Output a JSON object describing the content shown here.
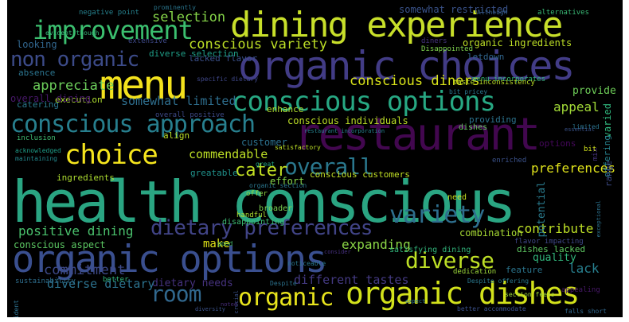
{
  "words": [
    {
      "text": "health conscious",
      "color": "#2aa582"
    },
    {
      "text": "organic options",
      "color": "#3a4f8f"
    },
    {
      "text": "dining experience",
      "color": "#c8df2a"
    },
    {
      "text": "organic choices",
      "color": "#423c86"
    },
    {
      "text": "menu",
      "color": "#f3e21d"
    },
    {
      "text": "restaurant",
      "color": "#42074f"
    },
    {
      "text": "organic dishes",
      "color": "#d2e11b"
    },
    {
      "text": "conscious options",
      "color": "#27a883"
    },
    {
      "text": "conscious approach",
      "color": "#277f8e"
    },
    {
      "text": "improvement",
      "color": "#3bbf6f"
    },
    {
      "text": "choice",
      "color": "#f5e51d"
    },
    {
      "text": "non organic",
      "color": "#3c4b89"
    },
    {
      "text": "dietary preferences",
      "color": "#414487"
    },
    {
      "text": "variety",
      "color": "#2e6f8e"
    },
    {
      "text": "organic",
      "color": "#e8e41d"
    },
    {
      "text": "diverse",
      "color": "#bddf26"
    },
    {
      "text": "overall",
      "color": "#2a788e"
    },
    {
      "text": "cater",
      "color": "#c2df23"
    },
    {
      "text": "room",
      "color": "#31688e"
    },
    {
      "text": "conscious variety",
      "color": "#bddf26"
    },
    {
      "text": "conscious diners",
      "color": "#d8e219"
    },
    {
      "text": "selection",
      "color": "#86d549"
    },
    {
      "text": "appreciate",
      "color": "#6ccd5a"
    },
    {
      "text": "commitment",
      "color": "#3e4a89"
    },
    {
      "text": "somewhat limited",
      "color": "#2e6e8e"
    },
    {
      "text": "preferences",
      "color": "#e0e31b"
    },
    {
      "text": "commendable",
      "color": "#bddf26"
    },
    {
      "text": "contribute",
      "color": "#bddf26"
    },
    {
      "text": "expanding",
      "color": "#8bd646"
    },
    {
      "text": "lack",
      "color": "#277f8e"
    },
    {
      "text": "appeal",
      "color": "#a2da37"
    },
    {
      "text": "dietary needs",
      "color": "#46327e"
    },
    {
      "text": "different tastes",
      "color": "#443a83"
    },
    {
      "text": "diverse dietary",
      "color": "#2c728e"
    },
    {
      "text": "positive dining",
      "color": "#4ac16d"
    },
    {
      "text": "conscious aspect",
      "color": "#5cc863"
    },
    {
      "text": "make",
      "color": "#e2e418"
    },
    {
      "text": "quality",
      "color": "#31b57b"
    },
    {
      "text": "provide",
      "color": "#6ece58"
    },
    {
      "text": "varied",
      "color": "#2fb47c"
    },
    {
      "text": "potential",
      "color": "#297b8e"
    },
    {
      "text": "catering",
      "color": "#2a788e"
    },
    {
      "text": "enhance",
      "color": "#b0dd2f"
    },
    {
      "text": "conscious individuals",
      "color": "#bddf26"
    },
    {
      "text": "conscious customers",
      "color": "#c0df25"
    },
    {
      "text": "customer",
      "color": "#2c718e"
    },
    {
      "text": "greatable",
      "color": "#20928c"
    },
    {
      "text": "effort",
      "color": "#87d549"
    },
    {
      "text": "organic ingredients",
      "color": "#bddf26"
    },
    {
      "text": "somewhat restricted",
      "color": "#3a538b"
    },
    {
      "text": "execution",
      "color": "#addc30"
    },
    {
      "text": "looking",
      "color": "#31668e"
    },
    {
      "text": "absence",
      "color": "#2b748e"
    },
    {
      "text": "overall dining",
      "color": "#48186a"
    },
    {
      "text": "lacked flavor",
      "color": "#3b518b"
    },
    {
      "text": "diverse selection",
      "color": "#1f9f88"
    },
    {
      "text": "letdown",
      "color": "#31668e"
    },
    {
      "text": "combination",
      "color": "#a8db34"
    },
    {
      "text": "feature",
      "color": "#2b758e"
    },
    {
      "text": "dishes lacked",
      "color": "#5ec962"
    },
    {
      "text": "sustainability",
      "color": "#2e6e8e"
    },
    {
      "text": "better",
      "color": "#32b67a"
    },
    {
      "text": "inclusion",
      "color": "#40bd72"
    },
    {
      "text": "ingredients",
      "color": "#addc30"
    },
    {
      "text": "options",
      "color": "#46085c"
    },
    {
      "text": "offering",
      "color": "#26828e"
    },
    {
      "text": "align",
      "color": "#bddf26"
    },
    {
      "text": "disappointing",
      "color": "#3dbc74"
    },
    {
      "text": "broader",
      "color": "#7ad151"
    },
    {
      "text": "satisfying dining",
      "color": "#31b57b"
    },
    {
      "text": "range",
      "color": "#3e4c8a"
    },
    {
      "text": "dishes",
      "color": "#65cb5e"
    },
    {
      "text": "need",
      "color": "#c5e021"
    },
    {
      "text": "providing",
      "color": "#2c738e"
    },
    {
      "text": "Disappointed",
      "color": "#7fd34e"
    },
    {
      "text": "diners",
      "color": "#46327e"
    },
    {
      "text": "menu incorporates",
      "color": "#35b779"
    },
    {
      "text": "taste inconsistency",
      "color": "#bddf26"
    },
    {
      "text": "overall positive",
      "color": "#3e4a89"
    },
    {
      "text": "alternatives",
      "color": "#3aba76"
    },
    {
      "text": "extensive",
      "color": "#3e4989"
    },
    {
      "text": "negative point",
      "color": "#26828e"
    },
    {
      "text": "evident though",
      "color": "#37b878"
    },
    {
      "text": "prominently",
      "color": "#2a768e"
    },
    {
      "text": "Although",
      "color": "#355f8d"
    },
    {
      "text": "specific dietary",
      "color": "#3f4788"
    },
    {
      "text": "offer",
      "color": "#90d743"
    },
    {
      "text": "handful",
      "color": "#addc30"
    },
    {
      "text": "enriched",
      "color": "#3b528b"
    },
    {
      "text": "mix",
      "color": "#46327e"
    },
    {
      "text": "bit",
      "color": "#d0e11c"
    },
    {
      "text": "limited",
      "color": "#2a768e"
    },
    {
      "text": "flavor impacting",
      "color": "#3f4889"
    },
    {
      "text": "dedication",
      "color": "#9fda3a"
    },
    {
      "text": "Despite offering",
      "color": "#2a788e"
    },
    {
      "text": "acknowledged",
      "color": "#1f9e89"
    },
    {
      "text": "maintaining",
      "color": "#23888e"
    },
    {
      "text": "organic section",
      "color": "#2a768e"
    },
    {
      "text": "satisfactory",
      "color": "#bddf26"
    },
    {
      "text": "great",
      "color": "#22a785"
    },
    {
      "text": "noticeable",
      "color": "#2a788e"
    },
    {
      "text": "good",
      "color": "#4ac16d"
    },
    {
      "text": "Despite",
      "color": "#2c728e"
    },
    {
      "text": "crucial",
      "color": "#3b528b"
    },
    {
      "text": "noted",
      "color": "#472c7a"
    },
    {
      "text": "appealing",
      "color": "#48186a"
    },
    {
      "text": "better accommodate",
      "color": "#3b518b"
    },
    {
      "text": "falls short",
      "color": "#31688e"
    },
    {
      "text": "section feels",
      "color": "#a0da39"
    },
    {
      "text": "bit pricey",
      "color": "#2a778e"
    },
    {
      "text": "diversity",
      "color": "#3b528b"
    },
    {
      "text": "expect",
      "color": "#2b748e"
    },
    {
      "text": "consider",
      "color": "#46307e"
    },
    {
      "text": "evident",
      "color": "#2d708e"
    },
    {
      "text": "exceptional",
      "color": "#2c728e"
    },
    {
      "text": "essential",
      "color": "#3a538b"
    },
    {
      "text": "restaurant incorporation",
      "color": "#26828e"
    }
  ]
}
